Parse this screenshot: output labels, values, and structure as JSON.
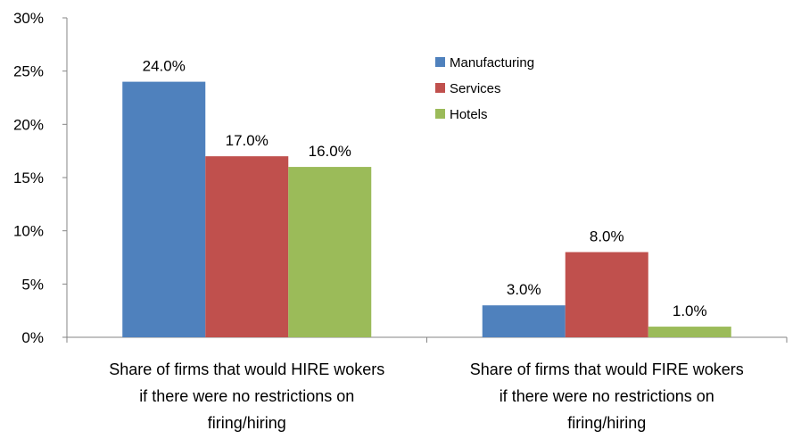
{
  "chart_data": {
    "type": "bar",
    "categories": [
      [
        "Share of firms that would HIRE wokers",
        "if there were no restrictions on",
        "firing/hiring"
      ],
      [
        "Share of firms that would FIRE  wokers",
        "if there were no restrictions on",
        "firing/hiring"
      ]
    ],
    "series": [
      {
        "name": "Manufacturing",
        "color": "#4F81BD",
        "values": [
          24.0,
          3.0
        ],
        "labels": [
          "24.0%",
          "3.0%"
        ]
      },
      {
        "name": "Services",
        "color": "#C0504D",
        "values": [
          17.0,
          8.0
        ],
        "labels": [
          "17.0%",
          "8.0%"
        ]
      },
      {
        "name": "Hotels",
        "color": "#9BBB59",
        "values": [
          16.0,
          1.0
        ],
        "labels": [
          "16.0%",
          "1.0%"
        ]
      }
    ],
    "y_ticks": [
      "0%",
      "5%",
      "10%",
      "15%",
      "20%",
      "25%",
      "30%"
    ],
    "ylim": [
      0,
      30
    ],
    "title": "",
    "xlabel": "",
    "ylabel": "",
    "grid": false,
    "legend_position": "top-right"
  }
}
